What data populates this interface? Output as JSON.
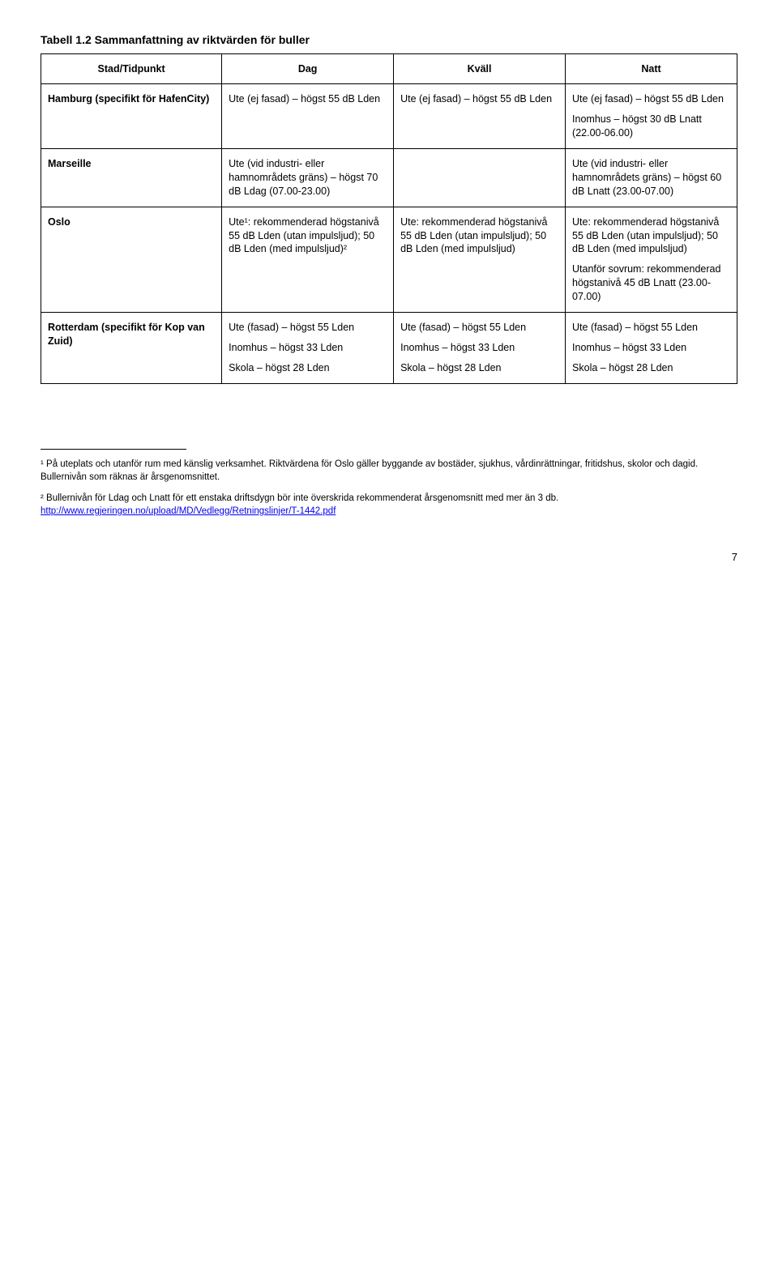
{
  "title": "Tabell 1.2 Sammanfattning av riktvärden för buller",
  "headers": {
    "rowLabel": "Stad/Tidpunkt",
    "col1": "Dag",
    "col2": "Kväll",
    "col3": "Natt"
  },
  "rows": [
    {
      "label": "Hamburg (specifikt för HafenCity)",
      "dag": [
        "Ute (ej fasad) – högst 55 dB Lden"
      ],
      "kvall": [
        "Ute (ej fasad) – högst 55 dB Lden"
      ],
      "natt": [
        "Ute (ej fasad) – högst 55 dB Lden",
        "Inomhus – högst 30 dB Lnatt (22.00-06.00)"
      ]
    },
    {
      "label": "Marseille",
      "dag": [
        "Ute (vid industri- eller hamnområdets gräns) – högst 70 dB Ldag (07.00-23.00)"
      ],
      "kvall": [],
      "natt": [
        "Ute (vid industri- eller hamnområdets gräns) – högst 60 dB Lnatt (23.00-07.00)"
      ]
    },
    {
      "label": "Oslo",
      "dag": [
        "Ute¹: rekommenderad högstanivå 55 dB Lden (utan impulsljud); 50 dB Lden (med impulsljud)²"
      ],
      "kvall": [
        "Ute: rekommenderad högstanivå 55 dB Lden (utan impulsljud); 50 dB Lden (med impulsljud)"
      ],
      "natt": [
        "Ute: rekommenderad högstanivå 55 dB Lden (utan impulsljud); 50 dB Lden (med impulsljud)",
        "Utanför sovrum: rekommenderad högstanivå 45 dB Lnatt (23.00-07.00)"
      ]
    },
    {
      "label": "Rotterdam (specifikt för Kop van Zuid)",
      "dag": [
        "Ute (fasad) – högst 55 Lden",
        "Inomhus – högst 33 Lden",
        "Skola – högst 28 Lden"
      ],
      "kvall": [
        "Ute (fasad) – högst 55 Lden",
        "Inomhus – högst 33 Lden",
        "Skola – högst 28 Lden"
      ],
      "natt": [
        "Ute (fasad) – högst 55 Lden",
        "Inomhus – högst 33 Lden",
        "Skola – högst 28 Lden"
      ]
    }
  ],
  "footnotes": {
    "f1": "¹ På uteplats och utanför rum med känslig verksamhet. Riktvärdena för Oslo gäller byggande av bostäder, sjukhus, vårdinrättningar, fritidshus, skolor och dagid. Bullernivån som räknas är årsgenomsnittet.",
    "f2_text": "² Bullernivån för Ldag och Lnatt för ett enstaka driftsdygn bör inte överskrida rekommenderat årsgenomsnitt med mer än 3 db. ",
    "f2_link_text": "http://www.regjeringen.no/upload/MD/Vedlegg/Retningslinjer/T-1442.pdf",
    "f2_link_href": "http://www.regjeringen.no/upload/MD/Vedlegg/Retningslinjer/T-1442.pdf"
  },
  "pageNumber": "7"
}
